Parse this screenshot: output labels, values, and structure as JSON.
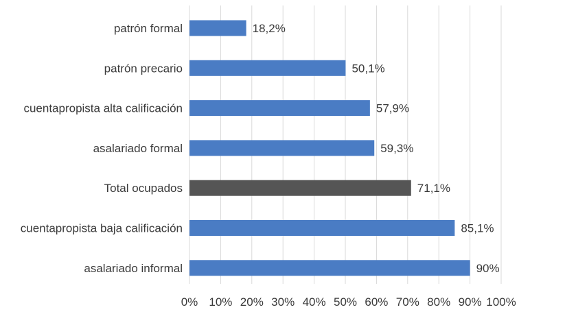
{
  "chart_data": {
    "type": "bar",
    "orientation": "horizontal",
    "categories": [
      "patrón formal",
      "patrón precario",
      "cuentapropista alta calificación",
      "asalariado formal",
      "Total ocupados",
      "cuentapropista baja calificación",
      "asalariado informal"
    ],
    "values": [
      18.2,
      50.1,
      57.9,
      59.3,
      71.1,
      85.1,
      90
    ],
    "data_labels": [
      "18,2%",
      "50,1%",
      "57,9%",
      "59,3%",
      "71,1%",
      "85,1%",
      "90%"
    ],
    "bar_colors": [
      "#4a7cc4",
      "#4a7cc4",
      "#4a7cc4",
      "#4a7cc4",
      "#555555",
      "#4a7cc4",
      "#4a7cc4"
    ],
    "xlim": [
      0,
      100
    ],
    "x_ticks": [
      0,
      10,
      20,
      30,
      40,
      50,
      60,
      70,
      80,
      90,
      100
    ],
    "x_tick_labels": [
      "0%",
      "10%",
      "20%",
      "30%",
      "40%",
      "50%",
      "60%",
      "70%",
      "80%",
      "90%",
      "100%"
    ],
    "grid": "vertical gridlines",
    "legend": "none"
  }
}
